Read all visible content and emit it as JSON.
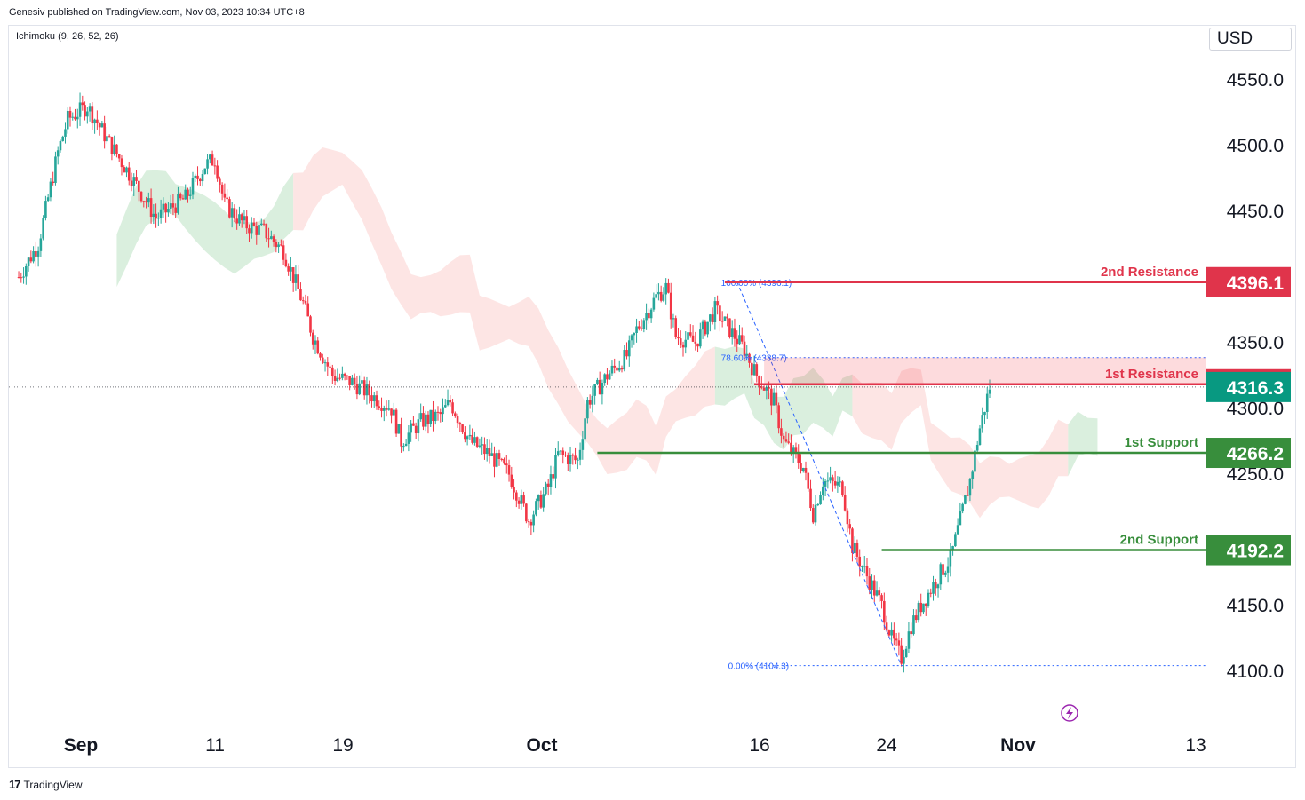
{
  "header": {
    "attribution": "Genesiv published on TradingView.com, Nov 03, 2023 10:34 UTC+8",
    "indicator": "Ichimoku (9, 26, 52, 26)",
    "currency": "USD"
  },
  "footer": {
    "logo_text": "TradingView"
  },
  "colors": {
    "bull": "#26a69a",
    "bear": "#f23645",
    "resistance": "#e0344b",
    "support": "#388e3c",
    "cloud_bull": "#d3ecd8",
    "cloud_bear": "#fde0df",
    "fib": "#2962ff",
    "current": "#089981"
  },
  "chart_data": {
    "type": "candlestick",
    "y_axis": {
      "ticks": [
        4550.0,
        4500.0,
        4450.0,
        4350.0,
        4300.0,
        4250.0,
        4150.0,
        4100.0
      ],
      "tick_labels": [
        "4550.0",
        "4500.0",
        "4450.0",
        "4350.0",
        "4300.0",
        "4250.0",
        "4150.0",
        "4100.0"
      ]
    },
    "x_axis": {
      "labels": [
        "Sep",
        "11",
        "19",
        "Oct",
        "16",
        "24",
        "Nov",
        "13"
      ]
    },
    "levels": [
      {
        "name": "2nd Resistance",
        "value": 4396.1,
        "label": "4396.1",
        "kind": "resistance"
      },
      {
        "name": "1st Resistance",
        "value": 4318.4,
        "label": "4318.4",
        "kind": "resistance"
      },
      {
        "name": "1st Support",
        "value": 4266.2,
        "label": "4266.2",
        "kind": "support"
      },
      {
        "name": "2nd Support",
        "value": 4192.2,
        "label": "4192.2",
        "kind": "support"
      }
    ],
    "current_price": {
      "value": 4316.3,
      "label": "4316.3"
    },
    "fibonacci": [
      {
        "label": "100.00% (4396.1)",
        "value": 4396.1
      },
      {
        "label": "78.60% (4338.7)",
        "value": 4338.7
      },
      {
        "label": "0.00% (4104.3)",
        "value": 4104.3
      }
    ],
    "price_path": [
      [
        1,
        4400
      ],
      [
        3,
        4425
      ],
      [
        5,
        4495
      ],
      [
        6,
        4520
      ],
      [
        8,
        4530
      ],
      [
        10,
        4505
      ],
      [
        13,
        4470
      ],
      [
        15,
        4445
      ],
      [
        18,
        4460
      ],
      [
        20,
        4485
      ],
      [
        21,
        4490
      ],
      [
        22,
        4455
      ],
      [
        24,
        4440
      ],
      [
        26,
        4435
      ],
      [
        28,
        4420
      ],
      [
        30,
        4380
      ],
      [
        31,
        4355
      ],
      [
        33,
        4325
      ],
      [
        35,
        4320
      ],
      [
        37,
        4310
      ],
      [
        39,
        4300
      ],
      [
        40,
        4275
      ],
      [
        42,
        4290
      ],
      [
        44,
        4295
      ],
      [
        45,
        4305
      ],
      [
        47,
        4275
      ],
      [
        49,
        4265
      ],
      [
        51,
        4250
      ],
      [
        53,
        4215
      ],
      [
        55,
        4240
      ],
      [
        56,
        4265
      ],
      [
        58,
        4260
      ],
      [
        59,
        4305
      ],
      [
        61,
        4325
      ],
      [
        63,
        4340
      ],
      [
        64,
        4360
      ],
      [
        66,
        4385
      ],
      [
        67,
        4392
      ],
      [
        68,
        4355
      ],
      [
        70,
        4350
      ],
      [
        72,
        4375
      ],
      [
        73,
        4365
      ],
      [
        75,
        4345
      ],
      [
        76,
        4328
      ],
      [
        78,
        4305
      ],
      [
        79,
        4275
      ],
      [
        81,
        4255
      ],
      [
        82,
        4220
      ],
      [
        83,
        4245
      ],
      [
        85,
        4240
      ],
      [
        86,
        4195
      ],
      [
        88,
        4165
      ],
      [
        89,
        4150
      ],
      [
        90,
        4125
      ],
      [
        91,
        4110
      ],
      [
        92,
        4135
      ],
      [
        93,
        4150
      ],
      [
        95,
        4175
      ],
      [
        96,
        4185
      ],
      [
        97,
        4215
      ],
      [
        98,
        4245
      ],
      [
        99,
        4285
      ],
      [
        100,
        4316.3
      ]
    ],
    "cloud": [
      {
        "polarity": "bull",
        "from": 11,
        "to": 29
      },
      {
        "polarity": "bear",
        "from": 29,
        "to": 72
      },
      {
        "polarity": "bull",
        "from": 72,
        "to": 86
      },
      {
        "polarity": "bear",
        "from": 86,
        "to": 108
      },
      {
        "polarity": "bull",
        "from": 108,
        "to": 111
      }
    ]
  }
}
